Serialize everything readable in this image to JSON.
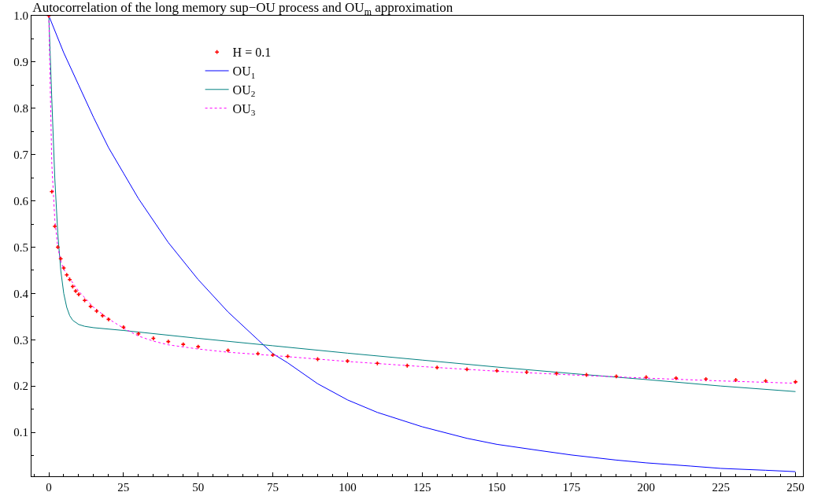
{
  "chart_data": {
    "type": "line",
    "title": "Autocorrelation of the long memory sup−OU process and OU$_{m}$ approximation",
    "xlim": [
      -5.8,
      252.5
    ],
    "ylim": [
      0.005,
      1.0
    ],
    "xticks": [
      0,
      25,
      50,
      75,
      100,
      125,
      150,
      175,
      200,
      225,
      250
    ],
    "yticks": [
      0.1,
      0.2,
      0.3,
      0.4,
      0.5,
      0.6,
      0.7,
      0.8,
      0.9,
      {
        "value": 1.0,
        "label": "1.0"
      }
    ],
    "legend": "top left",
    "series": [
      {
        "name": "H = 0.1",
        "type": "scatter",
        "marker": "cross",
        "color": "#ff0000",
        "x": [
          0,
          1,
          2,
          3,
          4,
          5,
          6,
          7,
          8,
          9,
          10,
          12,
          14,
          16,
          18,
          20,
          25,
          30,
          35,
          40,
          45,
          50,
          60,
          70,
          75,
          80,
          90,
          100,
          110,
          120,
          130,
          140,
          150,
          160,
          170,
          180,
          190,
          200,
          210,
          220,
          230,
          240,
          250
        ],
        "values": [
          1.0,
          0.62,
          0.545,
          0.5,
          0.475,
          0.455,
          0.44,
          0.43,
          0.415,
          0.405,
          0.398,
          0.385,
          0.372,
          0.362,
          0.352,
          0.344,
          0.327,
          0.313,
          0.303,
          0.296,
          0.29,
          0.285,
          0.277,
          0.27,
          0.267,
          0.264,
          0.258,
          0.254,
          0.249,
          0.244,
          0.24,
          0.236,
          0.233,
          0.23,
          0.227,
          0.224,
          0.221,
          0.219,
          0.217,
          0.215,
          0.213,
          0.211,
          0.209
        ]
      },
      {
        "name": "OU$_{1}$",
        "color": "#0000ff",
        "line_style": "solid",
        "x": [
          0,
          5,
          10,
          15,
          20,
          25,
          30,
          40,
          50,
          60,
          70,
          75,
          80,
          90,
          100,
          110,
          125,
          140,
          150,
          165,
          175,
          190,
          200,
          215,
          225,
          240,
          250
        ],
        "values": [
          1.0,
          0.92,
          0.85,
          0.78,
          0.715,
          0.66,
          0.605,
          0.51,
          0.43,
          0.36,
          0.3,
          0.27,
          0.25,
          0.205,
          0.17,
          0.143,
          0.112,
          0.087,
          0.074,
          0.06,
          0.051,
          0.04,
          0.034,
          0.027,
          0.022,
          0.018,
          0.015
        ]
      },
      {
        "name": "OU$_{2}$",
        "color": "#008080",
        "line_style": "solid",
        "x": [
          0,
          1,
          2,
          3,
          4,
          5,
          6,
          7,
          8,
          10,
          12,
          15,
          25,
          50,
          75,
          100,
          125,
          150,
          175,
          200,
          225,
          250
        ],
        "values": [
          1.0,
          0.82,
          0.65,
          0.53,
          0.45,
          0.4,
          0.37,
          0.352,
          0.342,
          0.333,
          0.329,
          0.326,
          0.32,
          0.303,
          0.287,
          0.271,
          0.256,
          0.241,
          0.227,
          0.214,
          0.2,
          0.188
        ]
      },
      {
        "name": "OU$_{3}$",
        "color": "#ff00ff",
        "line_style": "dotted",
        "x": [
          0,
          1,
          2,
          3,
          4,
          5,
          7,
          10,
          15,
          20,
          25,
          30,
          35,
          40,
          50,
          60,
          75,
          100,
          125,
          150,
          175,
          200,
          225,
          250
        ],
        "values": [
          1.0,
          0.68,
          0.56,
          0.5,
          0.47,
          0.452,
          0.432,
          0.405,
          0.37,
          0.345,
          0.325,
          0.308,
          0.297,
          0.289,
          0.28,
          0.273,
          0.266,
          0.253,
          0.242,
          0.232,
          0.224,
          0.217,
          0.211,
          0.206
        ]
      }
    ]
  }
}
